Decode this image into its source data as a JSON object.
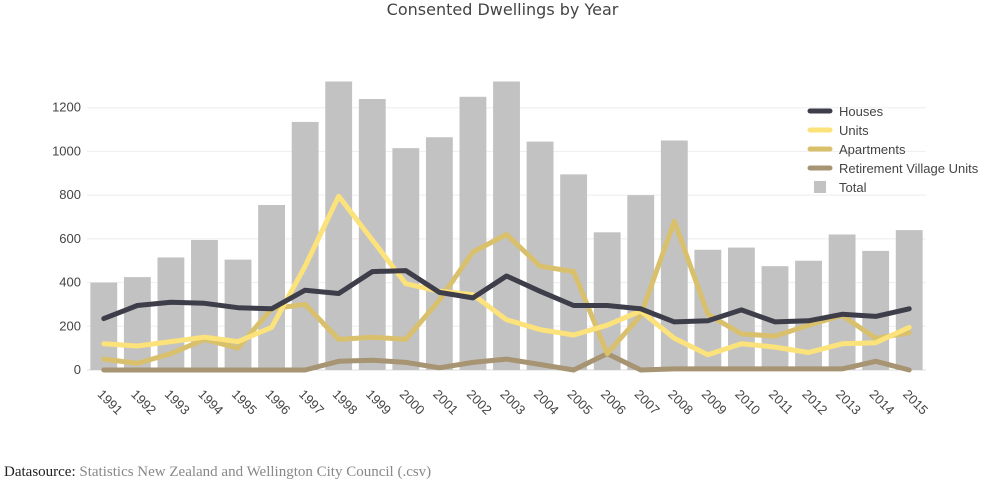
{
  "chart_data": {
    "type": "bar",
    "title": "Consented Dwellings by Year",
    "categories": [
      "1991",
      "1992",
      "1993",
      "1994",
      "1995",
      "1996",
      "1997",
      "1998",
      "1999",
      "2000",
      "2001",
      "2002",
      "2003",
      "2004",
      "2005",
      "2006",
      "2007",
      "2008",
      "2009",
      "2010",
      "2011",
      "2012",
      "2013",
      "2014",
      "2015"
    ],
    "ylim": [
      0,
      1400
    ],
    "yticks": [
      0,
      200,
      400,
      600,
      800,
      1000,
      1200
    ],
    "grid": true,
    "legend_position": "top-right",
    "bar_series": {
      "name": "Total",
      "color": "#c2c2c2",
      "values": [
        400,
        425,
        515,
        595,
        505,
        755,
        1135,
        1320,
        1240,
        1015,
        1065,
        1250,
        1320,
        1045,
        895,
        630,
        800,
        1050,
        550,
        560,
        475,
        500,
        620,
        545,
        640
      ]
    },
    "line_series": [
      {
        "name": "Houses",
        "color": "#3d3e4a",
        "values": [
          235,
          295,
          310,
          305,
          285,
          280,
          365,
          350,
          450,
          455,
          355,
          330,
          430,
          360,
          295,
          295,
          280,
          220,
          225,
          275,
          220,
          225,
          255,
          245,
          280
        ]
      },
      {
        "name": "Units",
        "color": "#fbe27a",
        "values": [
          120,
          110,
          130,
          150,
          130,
          195,
          475,
          795,
          595,
          395,
          360,
          345,
          230,
          185,
          160,
          205,
          270,
          145,
          70,
          120,
          105,
          80,
          120,
          125,
          195
        ]
      },
      {
        "name": "Apartments",
        "color": "#d9c06c",
        "values": [
          50,
          30,
          75,
          140,
          100,
          280,
          300,
          140,
          150,
          140,
          320,
          540,
          620,
          475,
          450,
          75,
          250,
          680,
          255,
          165,
          155,
          205,
          250,
          145,
          170
        ]
      },
      {
        "name": "Retirement Village Units",
        "color": "#a69472",
        "values": [
          0,
          0,
          0,
          0,
          0,
          0,
          0,
          40,
          45,
          35,
          10,
          35,
          50,
          25,
          0,
          75,
          0,
          5,
          5,
          5,
          5,
          5,
          5,
          40,
          0
        ]
      }
    ]
  },
  "footer": {
    "label": "Datasource:",
    "source": "Statistics New Zealand and Wellington City Council (.csv)"
  }
}
